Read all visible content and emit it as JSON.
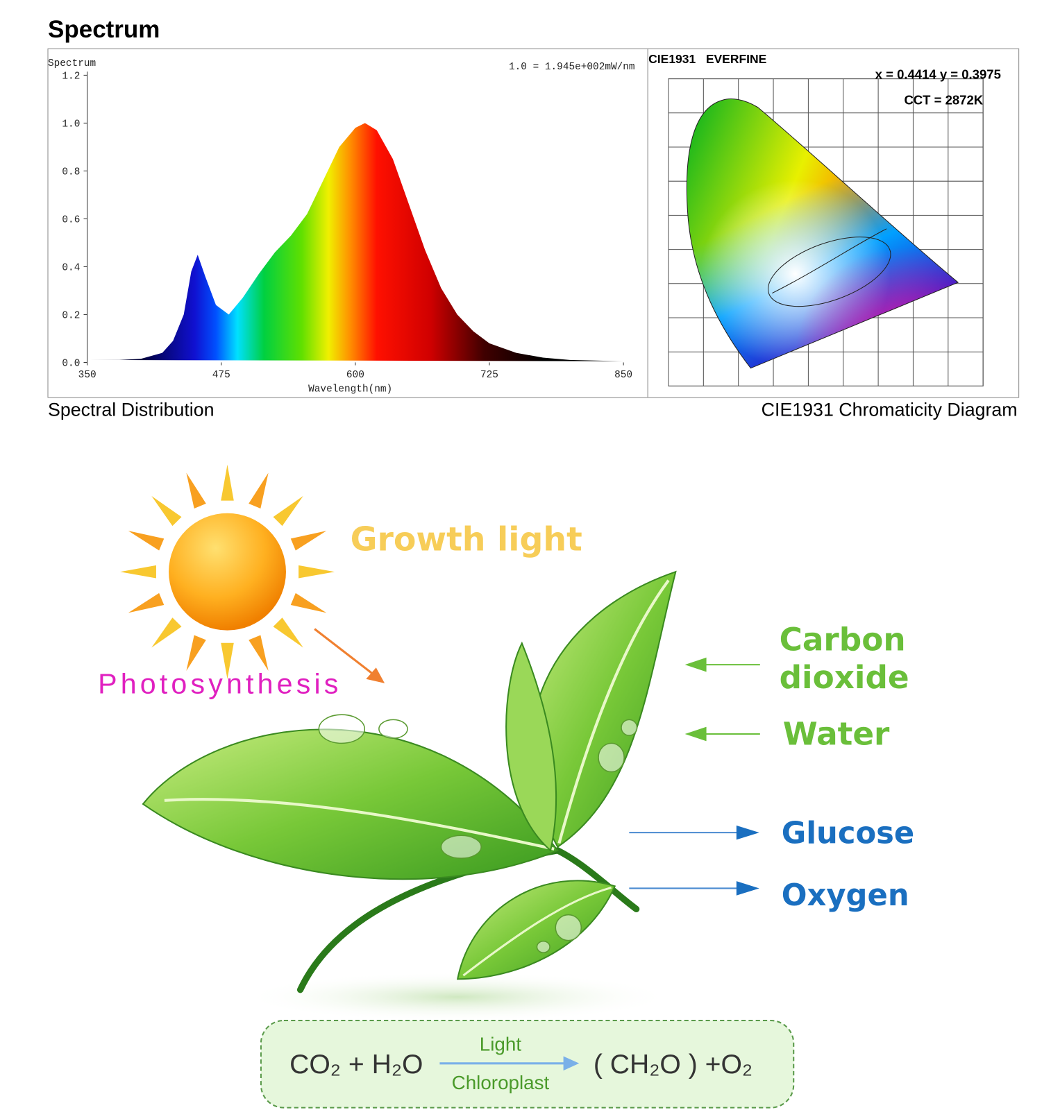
{
  "header": {
    "title": "Spectrum"
  },
  "chart_data": {
    "type": "area",
    "title": "Spectrum",
    "annotation": "1.0 = 1.945e+002mW/nm",
    "xlabel": "Wavelength(nm)",
    "caption": "Spectral Distribution",
    "x": [
      350,
      380,
      400,
      420,
      430,
      440,
      447,
      453,
      460,
      470,
      482,
      495,
      510,
      525,
      540,
      555,
      570,
      585,
      600,
      609,
      620,
      635,
      650,
      665,
      680,
      695,
      710,
      725,
      750,
      775,
      800,
      850
    ],
    "values": [
      0.01,
      0.01,
      0.015,
      0.04,
      0.09,
      0.2,
      0.38,
      0.45,
      0.36,
      0.24,
      0.2,
      0.27,
      0.37,
      0.46,
      0.53,
      0.62,
      0.76,
      0.9,
      0.98,
      1.0,
      0.97,
      0.85,
      0.66,
      0.47,
      0.31,
      0.2,
      0.13,
      0.08,
      0.04,
      0.02,
      0.01,
      0.005
    ],
    "xlim": [
      350,
      850
    ],
    "ylim": [
      0,
      1.2
    ],
    "xticks": [
      350,
      475,
      600,
      725,
      850
    ],
    "yticks": [
      {
        "value": 0,
        "label": "0.0"
      },
      0.2,
      0.4,
      0.6,
      0.8,
      {
        "value": 1,
        "label": "1.0"
      },
      1.2
    ]
  },
  "cie_diagram": {
    "title": "CIE1931   EVERFINE",
    "coordinates": "x = 0.4414 y = 0.3975",
    "cct": "CCT = 2872K",
    "caption": "CIE1931 Chromaticity Diagram"
  },
  "infographic": {
    "growth_light": "Growth light",
    "photosynthesis": "Photosynthesis",
    "carbon_dioxide": [
      "Carbon",
      "dioxide"
    ],
    "water": "Water",
    "glucose": "Glucose",
    "oxygen": "Oxygen",
    "equation": {
      "reactants": "CO₂ + H₂O",
      "above_arrow": "Light",
      "below_arrow": "Chloroplast",
      "products": "( CH₂O ) +O₂"
    }
  }
}
